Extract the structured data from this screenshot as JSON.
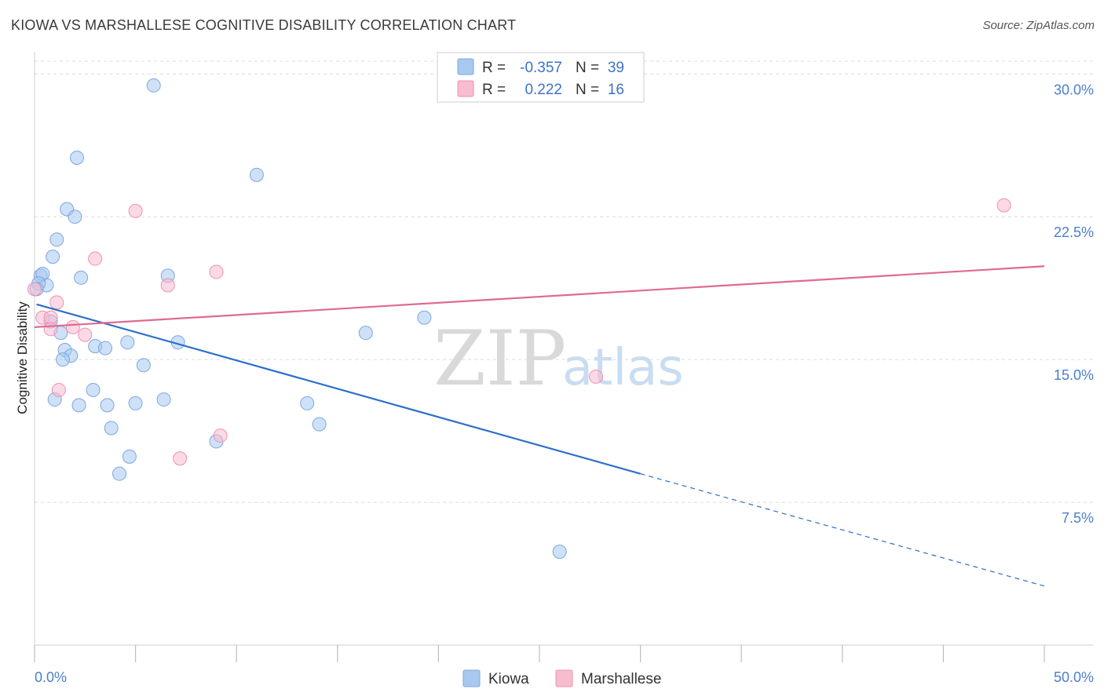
{
  "title": "KIOWA VS MARSHALLESE COGNITIVE DISABILITY CORRELATION CHART",
  "source": "Source: ZipAtlas.com",
  "watermark": {
    "zip": "ZIP",
    "atlas": "atlas"
  },
  "chart_data": {
    "type": "scatter",
    "xlabel": "",
    "ylabel": "Cognitive Disability",
    "xlim": [
      0,
      50
    ],
    "ylim": [
      0,
      31
    ],
    "x_tick_labels": [
      "0.0%",
      "50.0%"
    ],
    "y_ticks": [
      7.5,
      15.0,
      22.5,
      30.0
    ],
    "y_tick_labels": [
      "7.5%",
      "15.0%",
      "22.5%",
      "30.0%"
    ],
    "grid": true,
    "legend": [
      {
        "name": "Kiowa",
        "r_label": "R =",
        "r": "-0.357",
        "n_label": "N =",
        "n": "39",
        "color": "#a8c8f0",
        "stroke": "#7aa8e0"
      },
      {
        "name": "Marshallese",
        "r_label": "R =",
        "r": "0.222",
        "n_label": "N =",
        "n": "16",
        "color": "#f8bccf",
        "stroke": "#f090b0"
      }
    ],
    "series": [
      {
        "name": "Kiowa",
        "color": "#a8c8f0",
        "stroke": "#7aa8e0",
        "trend_color": "#2d6fcc",
        "trend": {
          "x0": 0.1,
          "y0": 17.9,
          "x1": 30.0,
          "y1": 9.0,
          "dash_to_x": 50.0,
          "dash_to_y": 3.1
        },
        "points": [
          [
            5.9,
            29.4
          ],
          [
            2.1,
            25.6
          ],
          [
            11.0,
            24.7
          ],
          [
            1.6,
            22.9
          ],
          [
            2.0,
            22.5
          ],
          [
            1.1,
            21.3
          ],
          [
            0.9,
            20.4
          ],
          [
            0.3,
            19.4
          ],
          [
            0.4,
            19.5
          ],
          [
            0.6,
            18.9
          ],
          [
            2.3,
            19.3
          ],
          [
            6.6,
            19.4
          ],
          [
            0.2,
            19.0
          ],
          [
            0.8,
            17.0
          ],
          [
            1.3,
            16.4
          ],
          [
            4.6,
            15.9
          ],
          [
            7.1,
            15.9
          ],
          [
            3.0,
            15.7
          ],
          [
            3.5,
            15.6
          ],
          [
            1.5,
            15.5
          ],
          [
            1.8,
            15.2
          ],
          [
            1.4,
            15.0
          ],
          [
            5.4,
            14.7
          ],
          [
            19.3,
            17.2
          ],
          [
            16.4,
            16.4
          ],
          [
            2.9,
            13.4
          ],
          [
            1.0,
            12.9
          ],
          [
            2.2,
            12.6
          ],
          [
            3.6,
            12.6
          ],
          [
            5.0,
            12.7
          ],
          [
            6.4,
            12.9
          ],
          [
            13.5,
            12.7
          ],
          [
            3.8,
            11.4
          ],
          [
            14.1,
            11.6
          ],
          [
            9.0,
            10.7
          ],
          [
            4.7,
            9.9
          ],
          [
            4.2,
            9.0
          ],
          [
            26.0,
            4.9
          ],
          [
            0.1,
            18.7
          ]
        ]
      },
      {
        "name": "Marshallese",
        "color": "#f8bccf",
        "stroke": "#f090b0",
        "trend_color": "#e06a91",
        "trend": {
          "x0": 0.0,
          "y0": 16.7,
          "x1": 50.0,
          "y1": 19.9
        },
        "points": [
          [
            0.0,
            18.7
          ],
          [
            1.1,
            18.0
          ],
          [
            0.4,
            17.2
          ],
          [
            0.8,
            17.2
          ],
          [
            0.8,
            16.6
          ],
          [
            1.9,
            16.7
          ],
          [
            2.5,
            16.3
          ],
          [
            3.0,
            20.3
          ],
          [
            5.0,
            22.8
          ],
          [
            6.6,
            18.9
          ],
          [
            9.0,
            19.6
          ],
          [
            1.2,
            13.4
          ],
          [
            27.8,
            14.1
          ],
          [
            7.2,
            9.8
          ],
          [
            9.2,
            11.0
          ],
          [
            48.0,
            23.1
          ]
        ]
      }
    ]
  }
}
